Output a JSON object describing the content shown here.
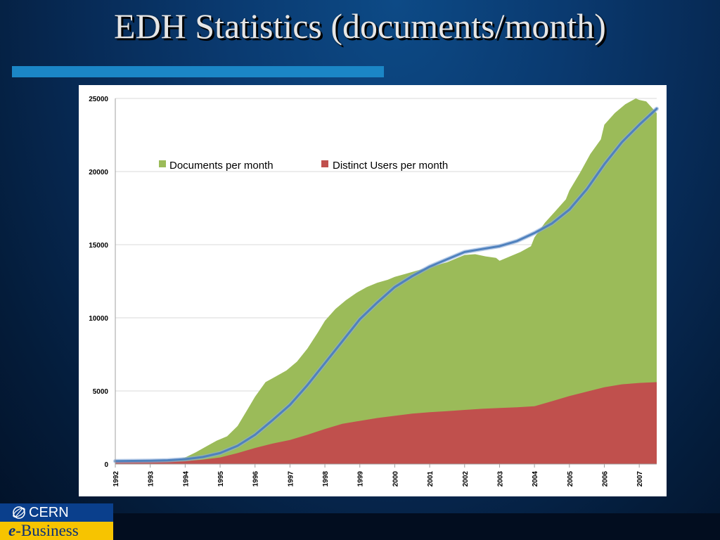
{
  "slide": {
    "title": "EDH Statistics (documents/month)"
  },
  "logo": {
    "top_text": "CERN",
    "bottom_e": "e",
    "bottom_dash": "-",
    "bottom_text": "Business"
  },
  "colors": {
    "documents": "#9bbb59",
    "users": "#c0504d",
    "trend": "#4f81bd",
    "gridline": "#d9d9d9",
    "title_underline": "#1b86c6",
    "logo_blue": "#0a3f8c",
    "logo_yellow": "#f7c400"
  },
  "chart_data": {
    "type": "area",
    "title": "",
    "xlabel": "",
    "ylabel": "",
    "xlim": [
      1992,
      2007.5
    ],
    "ylim": [
      0,
      25000
    ],
    "y_ticks": [
      "0",
      "5000",
      "10000",
      "15000",
      "20000",
      "25000"
    ],
    "x_ticks": [
      "1992",
      "1993",
      "1994",
      "1995",
      "1996",
      "1997",
      "1998",
      "1999",
      "2000",
      "2001",
      "2002",
      "2003",
      "2004",
      "2005",
      "2006",
      "2007"
    ],
    "grid": true,
    "legend_placement": "top-left",
    "legend": [
      "Documents per month",
      "Distinct Users per month"
    ],
    "series": [
      {
        "name": "Documents per month",
        "type": "area",
        "color": "#9bbb59",
        "x": [
          1992,
          1992.5,
          1993,
          1993.4,
          1993.8,
          1994,
          1994.3,
          1994.6,
          1994.9,
          1995.2,
          1995.5,
          1995.8,
          1996,
          1996.3,
          1996.6,
          1996.9,
          1997.2,
          1997.5,
          1997.8,
          1998,
          1998.3,
          1998.6,
          1998.9,
          1999.2,
          1999.5,
          1999.8,
          2000,
          2000.3,
          2000.6,
          2000.9,
          2001.2,
          2001.5,
          2001.8,
          2002,
          2002.3,
          2002.6,
          2002.9,
          2003,
          2003.3,
          2003.6,
          2003.9,
          2004,
          2004.3,
          2004.6,
          2004.9,
          2005,
          2005.3,
          2005.6,
          2005.9,
          2006,
          2006.3,
          2006.6,
          2006.9,
          2007,
          2007.2,
          2007.5
        ],
        "values": [
          250,
          240,
          260,
          280,
          320,
          450,
          800,
          1200,
          1600,
          1900,
          2600,
          3800,
          4600,
          5600,
          6000,
          6400,
          7000,
          7900,
          9000,
          9800,
          10600,
          11200,
          11700,
          12100,
          12400,
          12600,
          12800,
          13000,
          13200,
          13400,
          13600,
          13800,
          14100,
          14300,
          14350,
          14200,
          14100,
          13900,
          14200,
          14500,
          14900,
          15500,
          16500,
          17300,
          18100,
          18700,
          19900,
          21200,
          22200,
          23200,
          24000,
          24600,
          25000,
          24900,
          24800,
          24000
        ]
      },
      {
        "name": "Distinct Users per month",
        "type": "area",
        "color": "#c0504d",
        "x": [
          1992,
          1993,
          1993.5,
          1994,
          1994.5,
          1995,
          1995.5,
          1996,
          1996.5,
          1997,
          1997.5,
          1998,
          1998.5,
          1999,
          1999.5,
          2000,
          2000.5,
          2001,
          2001.5,
          2002,
          2002.5,
          2003,
          2003.5,
          2004,
          2004.5,
          2005,
          2005.5,
          2006,
          2006.5,
          2007,
          2007.5
        ],
        "values": [
          150,
          160,
          170,
          200,
          300,
          450,
          750,
          1100,
          1400,
          1650,
          2000,
          2400,
          2750,
          2950,
          3150,
          3300,
          3450,
          3550,
          3620,
          3700,
          3780,
          3830,
          3880,
          3950,
          4300,
          4650,
          4950,
          5250,
          5450,
          5550,
          5600
        ]
      },
      {
        "name": "",
        "type": "line",
        "color": "#4f81bd",
        "x": [
          1992,
          1992.5,
          1993,
          1993.5,
          1994,
          1994.5,
          1995,
          1995.5,
          1996,
          1996.5,
          1997,
          1997.5,
          1998,
          1998.5,
          1999,
          1999.5,
          2000,
          2000.5,
          2001,
          2001.5,
          2002,
          2002.5,
          2003,
          2003.5,
          2004,
          2004.5,
          2005,
          2005.5,
          2006,
          2006.5,
          2007,
          2007.5
        ],
        "values": [
          200,
          215,
          230,
          260,
          330,
          480,
          750,
          1250,
          2000,
          3000,
          4050,
          5400,
          6900,
          8400,
          9900,
          11050,
          12100,
          12850,
          13500,
          14000,
          14500,
          14700,
          14900,
          15250,
          15800,
          16450,
          17400,
          18800,
          20500,
          22000,
          23200,
          24300
        ]
      }
    ]
  }
}
